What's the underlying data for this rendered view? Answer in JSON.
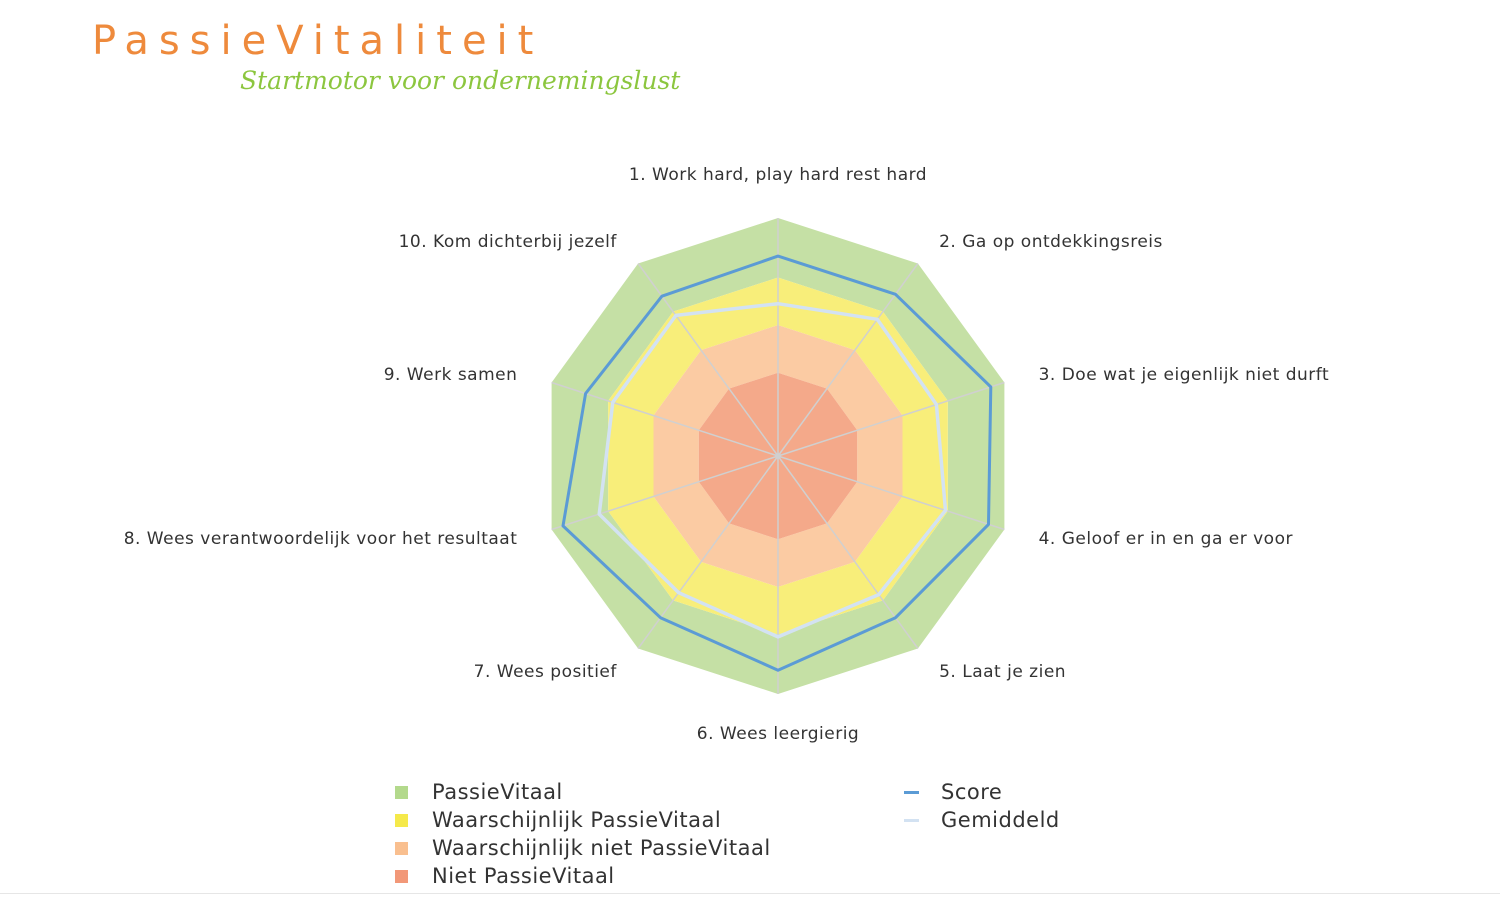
{
  "brand": {
    "title": "PassieVitaliteit",
    "tagline": "Startmotor voor ondernemingslust",
    "title_color": "#ee8a3c",
    "tagline_color": "#8cc63f"
  },
  "chart_data": {
    "type": "radar",
    "title": "",
    "categories": [
      "1. Work hard, play hard rest hard",
      "2. Ga op ontdekkingsreis",
      "3. Doe wat je eigenlijk niet durft",
      "4. Geloof er in en ga er voor",
      "5. Laat je zien",
      "6. Wees leergierig",
      "7. Wees positief",
      "8. Wees verantwoordelijk voor het resultaat",
      "9. Werk samen",
      "10. Kom dichterbij jezelf"
    ],
    "rlim": [
      0,
      10
    ],
    "grid": true,
    "legend_position": "bottom",
    "bands": [
      {
        "name": "PassieVitaal",
        "from": 7.5,
        "to": 10,
        "color": "#c5e0a5"
      },
      {
        "name": "Waarschijnlijk PassieVitaal",
        "from": 5.5,
        "to": 7.5,
        "color": "#f8ee7a"
      },
      {
        "name": "Waarschijnlijk niet PassieVitaal",
        "from": 3.5,
        "to": 5.5,
        "color": "#fbcba3"
      },
      {
        "name": "Niet PassieVitaal",
        "from": 0,
        "to": 3.5,
        "color": "#f4a98a"
      }
    ],
    "series": [
      {
        "name": "Score",
        "color": "#5b9bd5",
        "values": [
          8.4,
          8.4,
          9.4,
          9.3,
          8.4,
          9.0,
          8.4,
          9.5,
          8.5,
          8.3
        ]
      },
      {
        "name": "Gemiddeld",
        "color": "#d3e2f2",
        "values": [
          6.4,
          7.1,
          7.0,
          7.4,
          7.2,
          7.6,
          7.1,
          7.9,
          7.3,
          7.3
        ]
      }
    ]
  }
}
